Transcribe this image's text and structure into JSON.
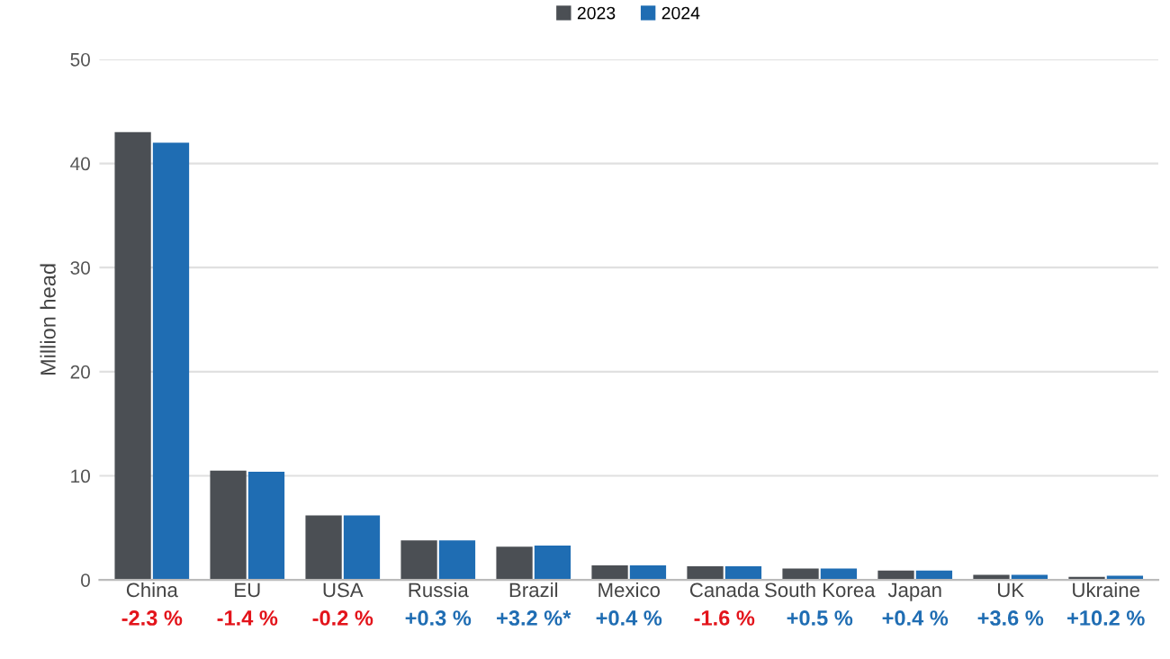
{
  "chart_data": {
    "type": "bar",
    "ylabel": "Million head",
    "categories": [
      "China",
      "EU",
      "USA",
      "Russia",
      "Brazil",
      "Mexico",
      "Canada",
      "South Korea",
      "Japan",
      "UK",
      "Ukraine"
    ],
    "series": [
      {
        "name": "2023",
        "color": "#4b4f54",
        "values": [
          43,
          10.5,
          6.2,
          3.8,
          3.2,
          1.4,
          1.3,
          1.1,
          0.9,
          0.5,
          0.3
        ]
      },
      {
        "name": "2024",
        "color": "#1f6db3",
        "values": [
          42,
          10.4,
          6.2,
          3.8,
          3.3,
          1.4,
          1.3,
          1.1,
          0.9,
          0.5,
          0.4
        ]
      }
    ],
    "annotations": [
      "-2.3 %",
      "-1.4 %",
      "-0.2 %",
      "+0.3 %",
      "+3.2 %*",
      "+0.4 %",
      "-1.6 %",
      "+0.5 %",
      "+0.4 %",
      "+3.6 %",
      "+10.2 %"
    ],
    "ylim": [
      0,
      50
    ],
    "yticks": [
      0,
      10,
      20,
      30,
      40,
      50
    ],
    "grid": "y",
    "legend": "top"
  }
}
